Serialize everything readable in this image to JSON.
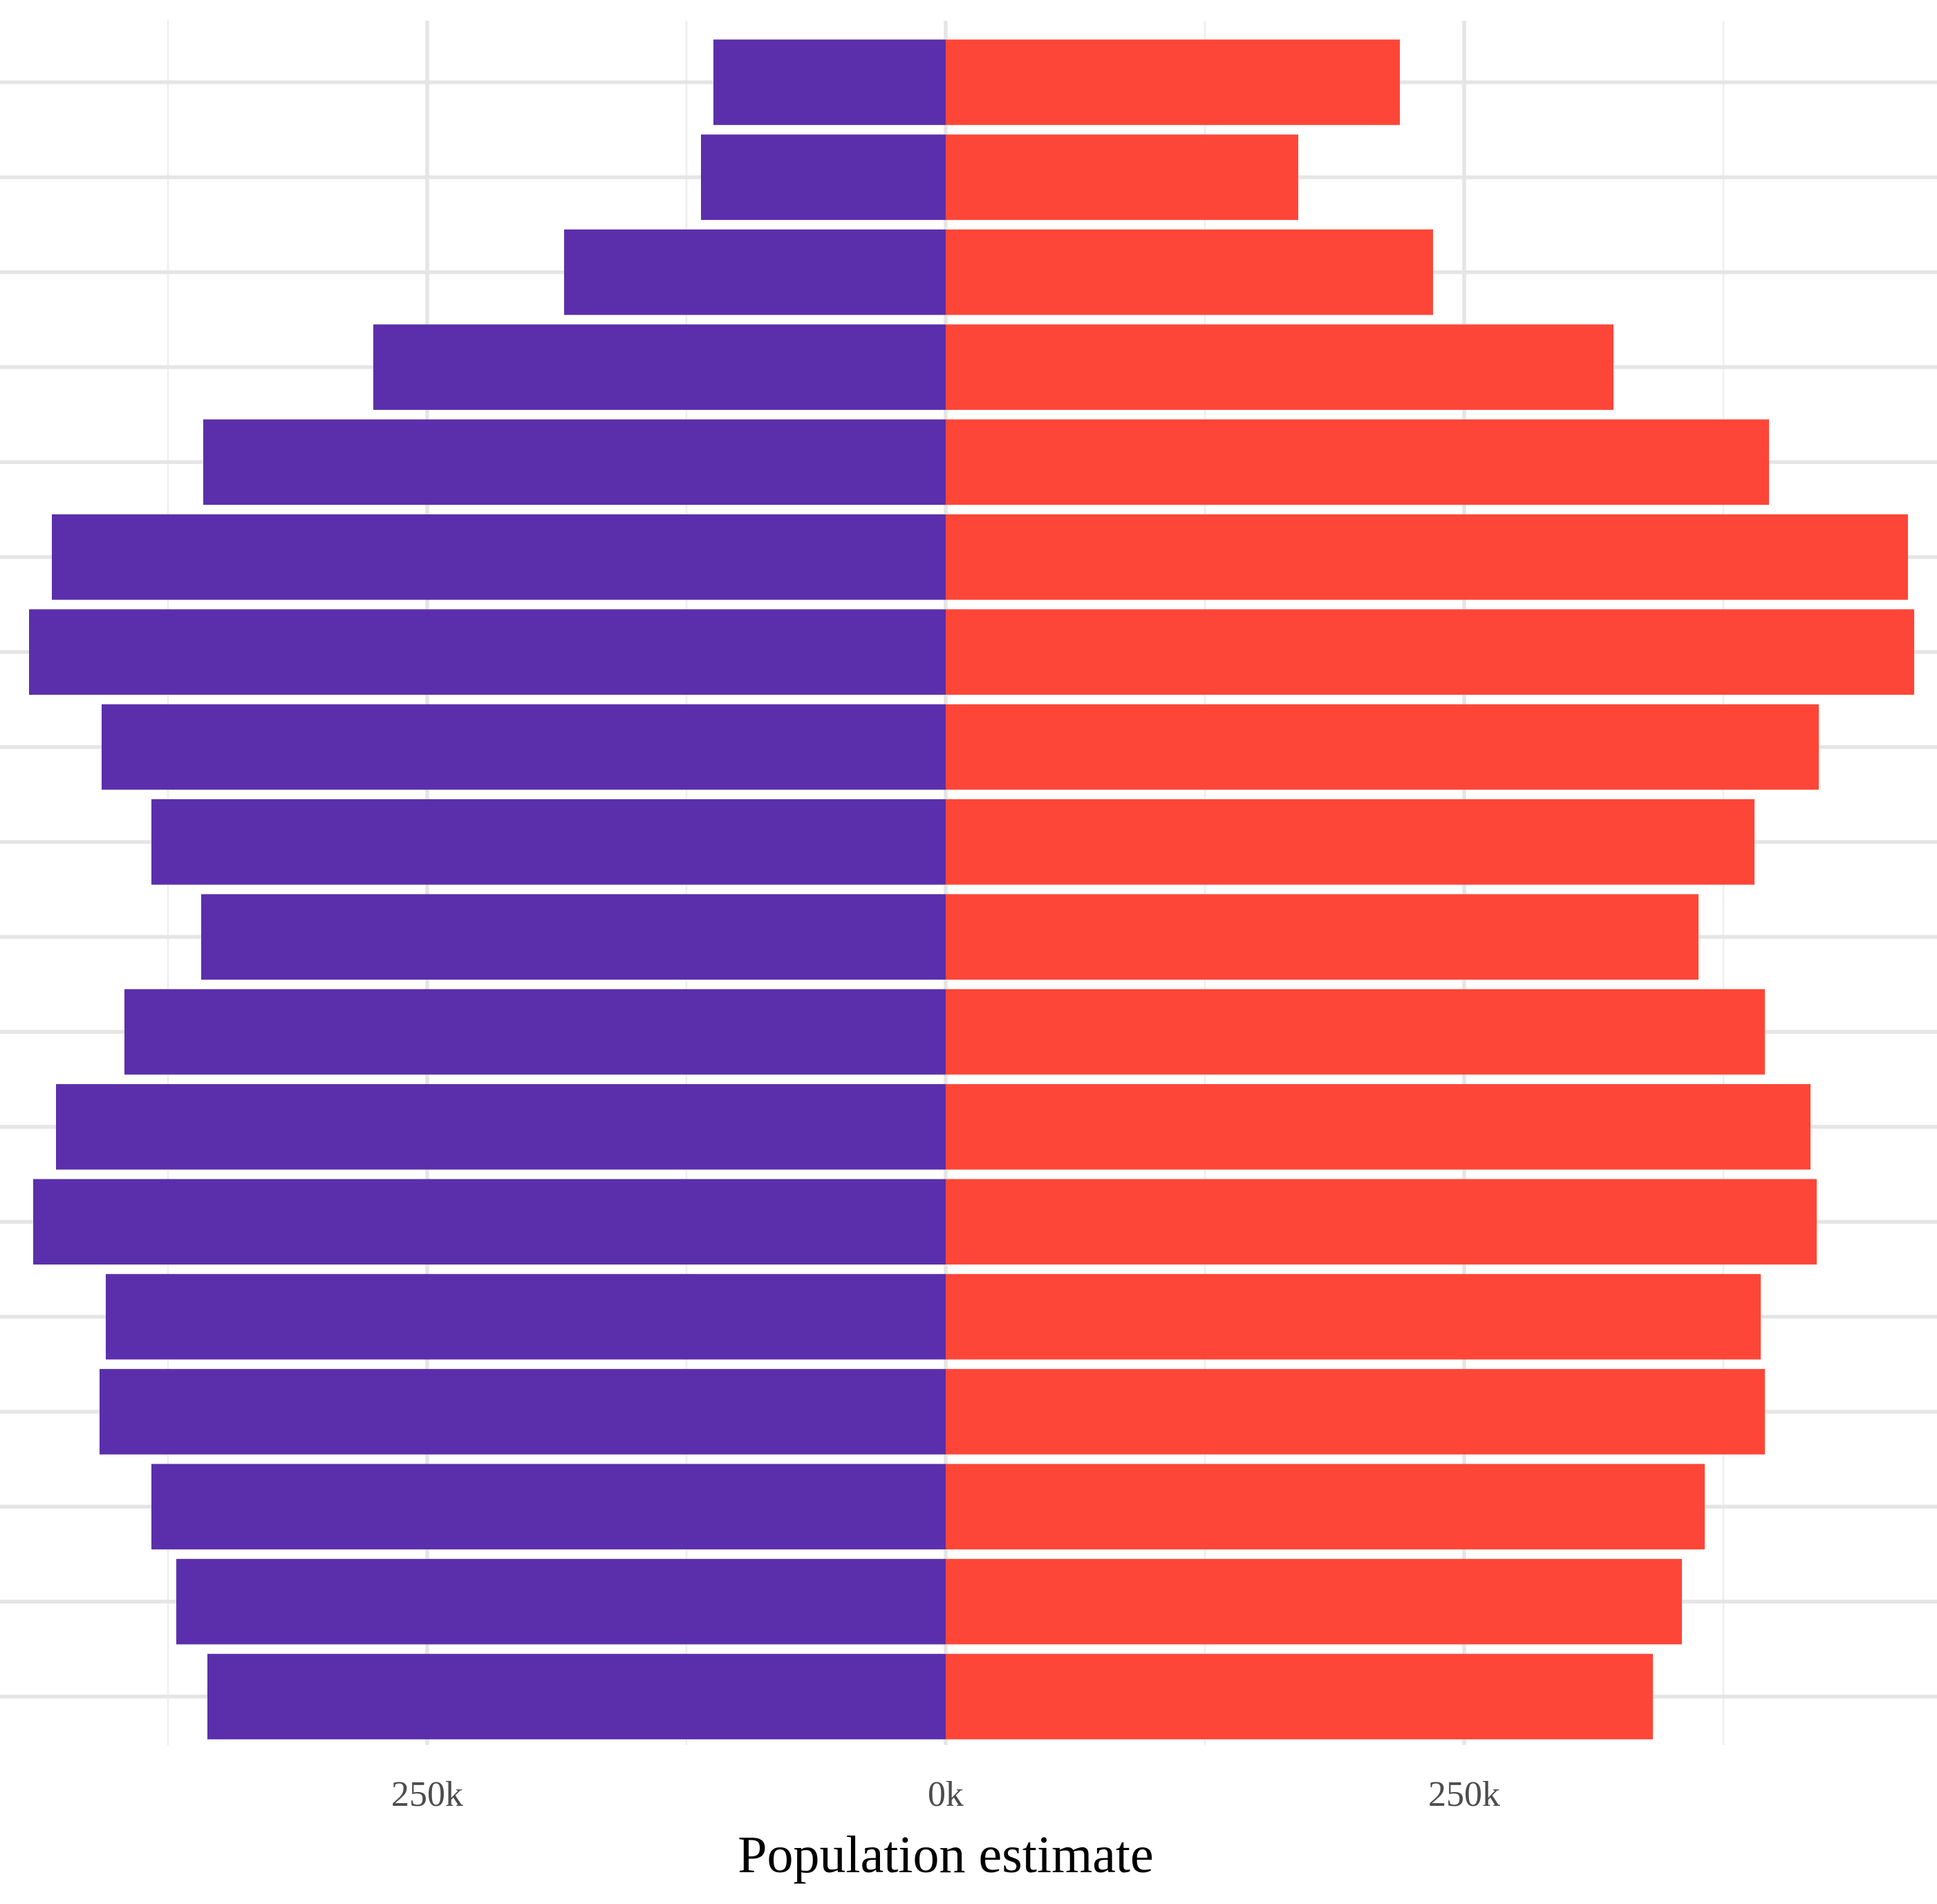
{
  "chart_data": {
    "type": "bar",
    "orientation": "horizontal",
    "layout": "population-pyramid",
    "xlabel": "Population estimate",
    "ylabel": "",
    "title": "",
    "xlim": [
      -445000,
      478000
    ],
    "x_ticks": [
      {
        "value": -250000,
        "label": "250k"
      },
      {
        "value": 0,
        "label": "0k"
      },
      {
        "value": 250000,
        "label": "250k"
      }
    ],
    "x_minor_ticks": [
      -375000,
      -125000,
      125000,
      375000
    ],
    "grid": true,
    "legend": "none",
    "categories_bottom_to_top": 18,
    "series": [
      {
        "side": "left",
        "color": "#5b2fab",
        "values_bottom_to_top": [
          356000,
          371000,
          383000,
          408000,
          405000,
          440000,
          429000,
          396000,
          359000,
          383000,
          407000,
          442000,
          431000,
          358000,
          276000,
          184000,
          118000,
          112000
        ]
      },
      {
        "side": "right",
        "color": "#fe4638",
        "values_bottom_to_top": [
          341000,
          355000,
          366000,
          395000,
          393000,
          420000,
          417000,
          395000,
          363000,
          390000,
          421000,
          467000,
          464000,
          397000,
          322000,
          235000,
          170000,
          219000
        ]
      }
    ]
  }
}
